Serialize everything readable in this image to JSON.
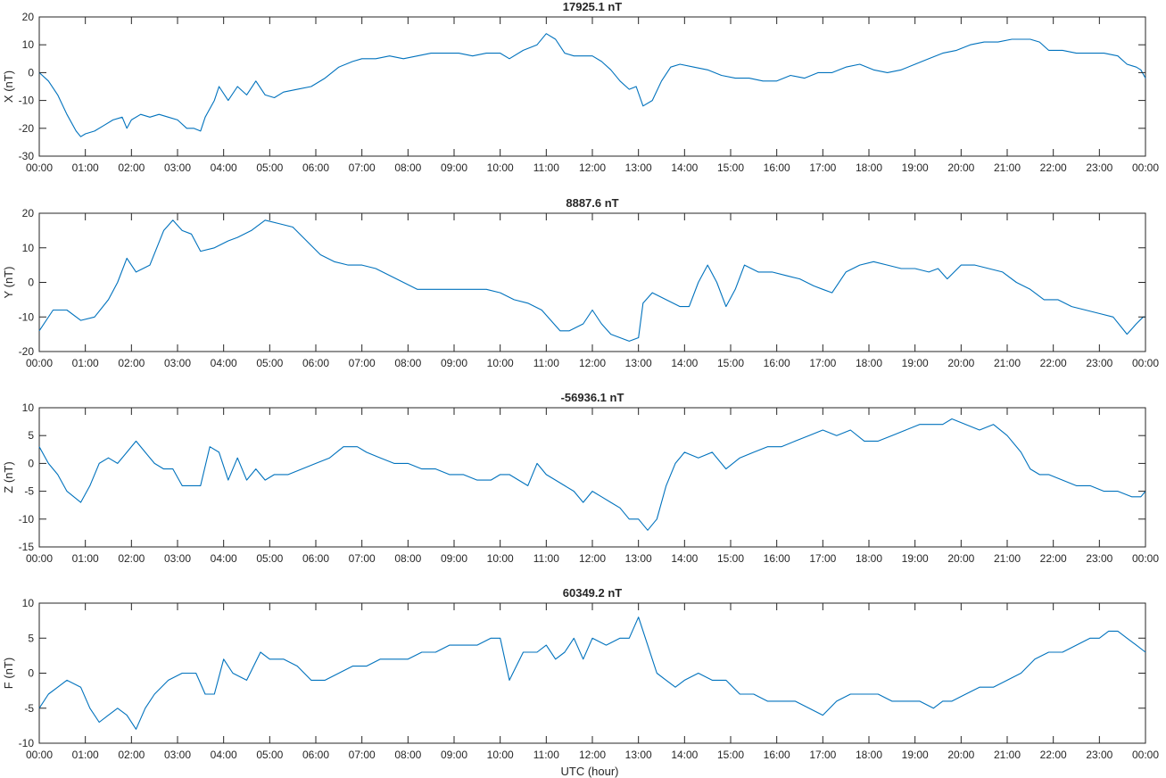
{
  "figure": {
    "xlabel": "UTC (hour)"
  },
  "x_tick_labels": [
    "00:00",
    "01:00",
    "02:00",
    "03:00",
    "04:00",
    "05:00",
    "06:00",
    "07:00",
    "08:00",
    "09:00",
    "10:00",
    "11:00",
    "12:00",
    "13:00",
    "14:00",
    "15:00",
    "16:00",
    "17:00",
    "18:00",
    "19:00",
    "20:00",
    "21:00",
    "22:00",
    "23:00",
    "00:00"
  ],
  "colors": {
    "line": "#0072bd",
    "axis": "#262626",
    "background": "#ffffff"
  },
  "chart_data": [
    {
      "type": "line",
      "title": "17925.1 nT",
      "ylabel": "X (nT)",
      "xlabel": "",
      "xlim": [
        0,
        24
      ],
      "ylim": [
        -30,
        20
      ],
      "yticks": [
        20,
        10,
        0,
        -10,
        -20,
        -30
      ],
      "grid": false,
      "series": [
        {
          "x": [
            0,
            0.2,
            0.4,
            0.6,
            0.8,
            0.9,
            1.0,
            1.2,
            1.4,
            1.6,
            1.8,
            1.9,
            2.0,
            2.2,
            2.4,
            2.6,
            2.8,
            3.0,
            3.2,
            3.35,
            3.5,
            3.6,
            3.8,
            3.9,
            4.1,
            4.3,
            4.5,
            4.7,
            4.9,
            5.1,
            5.3,
            5.6,
            5.9,
            6.2,
            6.5,
            6.8,
            7.0,
            7.3,
            7.6,
            7.9,
            8.2,
            8.5,
            8.8,
            9.1,
            9.4,
            9.7,
            10.0,
            10.2,
            10.5,
            10.8,
            11.0,
            11.2,
            11.4,
            11.6,
            11.8,
            12.0,
            12.2,
            12.4,
            12.6,
            12.8,
            12.95,
            13.1,
            13.3,
            13.5,
            13.7,
            13.9,
            14.2,
            14.5,
            14.8,
            15.1,
            15.4,
            15.7,
            16.0,
            16.3,
            16.6,
            16.9,
            17.2,
            17.5,
            17.8,
            18.1,
            18.4,
            18.7,
            19.0,
            19.3,
            19.6,
            19.9,
            20.2,
            20.5,
            20.8,
            21.1,
            21.35,
            21.5,
            21.7,
            21.9,
            22.2,
            22.5,
            22.8,
            23.1,
            23.4,
            23.6,
            23.8,
            23.9,
            24.0
          ],
          "values": [
            0,
            -3,
            -8,
            -15,
            -21,
            -23,
            -22,
            -21,
            -19,
            -17,
            -16,
            -20,
            -17,
            -15,
            -16,
            -15,
            -16,
            -17,
            -20,
            -20,
            -21,
            -16,
            -10,
            -5,
            -10,
            -5,
            -8,
            -3,
            -8,
            -9,
            -7,
            -6,
            -5,
            -2,
            2,
            4,
            5,
            5,
            6,
            5,
            6,
            7,
            7,
            7,
            6,
            7,
            7,
            5,
            8,
            10,
            14,
            12,
            7,
            6,
            6,
            6,
            4,
            1,
            -3,
            -6,
            -5,
            -12,
            -10,
            -3,
            2,
            3,
            2,
            1,
            -1,
            -2,
            -2,
            -3,
            -3,
            -1,
            -2,
            0,
            0,
            2,
            3,
            1,
            0,
            1,
            3,
            5,
            7,
            8,
            10,
            11,
            11,
            12,
            12,
            12,
            11,
            8,
            8,
            7,
            7,
            7,
            6,
            3,
            2,
            1,
            -2
          ]
        }
      ]
    },
    {
      "type": "line",
      "title": "8887.6 nT",
      "ylabel": "Y (nT)",
      "xlabel": "",
      "xlim": [
        0,
        24
      ],
      "ylim": [
        -20,
        20
      ],
      "yticks": [
        20,
        10,
        0,
        -10,
        -20
      ],
      "grid": false,
      "series": [
        {
          "x": [
            0,
            0.3,
            0.6,
            0.9,
            1.2,
            1.5,
            1.7,
            1.9,
            2.1,
            2.4,
            2.7,
            2.9,
            3.1,
            3.3,
            3.5,
            3.8,
            4.1,
            4.3,
            4.6,
            4.9,
            5.2,
            5.5,
            5.8,
            6.1,
            6.4,
            6.7,
            7.0,
            7.3,
            7.6,
            7.9,
            8.2,
            8.5,
            8.8,
            9.1,
            9.4,
            9.7,
            10.0,
            10.3,
            10.6,
            10.9,
            11.1,
            11.3,
            11.5,
            11.8,
            12.0,
            12.2,
            12.4,
            12.6,
            12.8,
            13.0,
            13.1,
            13.3,
            13.6,
            13.9,
            14.1,
            14.3,
            14.5,
            14.7,
            14.9,
            15.1,
            15.3,
            15.6,
            15.9,
            16.2,
            16.5,
            16.8,
            17.0,
            17.2,
            17.5,
            17.8,
            18.1,
            18.4,
            18.7,
            19.0,
            19.3,
            19.5,
            19.7,
            20.0,
            20.3,
            20.6,
            20.9,
            21.2,
            21.5,
            21.8,
            22.1,
            22.4,
            22.7,
            23.0,
            23.3,
            23.6,
            23.8,
            23.95,
            24.0
          ],
          "values": [
            -14,
            -8,
            -8,
            -11,
            -10,
            -5,
            0,
            7,
            3,
            5,
            15,
            18,
            15,
            14,
            9,
            10,
            12,
            13,
            15,
            18,
            17,
            16,
            12,
            8,
            6,
            5,
            5,
            4,
            2,
            0,
            -2,
            -2,
            -2,
            -2,
            -2,
            -2,
            -3,
            -5,
            -6,
            -8,
            -11,
            -14,
            -14,
            -12,
            -8,
            -12,
            -15,
            -16,
            -17,
            -16,
            -6,
            -3,
            -5,
            -7,
            -7,
            0,
            5,
            0,
            -7,
            -2,
            5,
            3,
            3,
            2,
            1,
            -1,
            -2,
            -3,
            3,
            5,
            6,
            5,
            4,
            4,
            3,
            4,
            1,
            5,
            5,
            4,
            3,
            0,
            -2,
            -5,
            -5,
            -7,
            -8,
            -9,
            -10,
            -15,
            -12,
            -10,
            -10
          ]
        }
      ]
    },
    {
      "type": "line",
      "title": "-56936.1 nT",
      "ylabel": "Z (nT)",
      "xlabel": "",
      "xlim": [
        0,
        24
      ],
      "ylim": [
        -15,
        10
      ],
      "yticks": [
        10,
        5,
        0,
        -5,
        -10,
        -15
      ],
      "grid": false,
      "series": [
        {
          "x": [
            0,
            0.2,
            0.4,
            0.6,
            0.9,
            1.1,
            1.3,
            1.5,
            1.7,
            1.9,
            2.1,
            2.3,
            2.5,
            2.7,
            2.9,
            3.1,
            3.3,
            3.5,
            3.7,
            3.9,
            4.1,
            4.3,
            4.5,
            4.7,
            4.9,
            5.1,
            5.4,
            5.7,
            6.0,
            6.3,
            6.6,
            6.9,
            7.1,
            7.4,
            7.7,
            8.0,
            8.3,
            8.6,
            8.9,
            9.2,
            9.5,
            9.8,
            10.0,
            10.2,
            10.4,
            10.6,
            10.8,
            11.0,
            11.2,
            11.4,
            11.6,
            11.8,
            12.0,
            12.2,
            12.4,
            12.6,
            12.8,
            13.0,
            13.2,
            13.4,
            13.6,
            13.8,
            14.0,
            14.3,
            14.6,
            14.9,
            15.2,
            15.5,
            15.8,
            16.1,
            16.4,
            16.7,
            17.0,
            17.3,
            17.6,
            17.9,
            18.2,
            18.5,
            18.8,
            19.1,
            19.4,
            19.6,
            19.8,
            20.1,
            20.4,
            20.7,
            21.0,
            21.3,
            21.5,
            21.7,
            21.9,
            22.2,
            22.5,
            22.8,
            23.1,
            23.4,
            23.7,
            23.9,
            24.0
          ],
          "values": [
            3,
            0,
            -2,
            -5,
            -7,
            -4,
            0,
            1,
            0,
            2,
            4,
            2,
            0,
            -1,
            -1,
            -4,
            -4,
            -4,
            3,
            2,
            -3,
            1,
            -3,
            -1,
            -3,
            -2,
            -2,
            -1,
            0,
            1,
            3,
            3,
            2,
            1,
            0,
            0,
            -1,
            -1,
            -2,
            -2,
            -3,
            -3,
            -2,
            -2,
            -3,
            -4,
            0,
            -2,
            -3,
            -4,
            -5,
            -7,
            -5,
            -6,
            -7,
            -8,
            -10,
            -10,
            -12,
            -10,
            -4,
            0,
            2,
            1,
            2,
            -1,
            1,
            2,
            3,
            3,
            4,
            5,
            6,
            5,
            6,
            4,
            4,
            5,
            6,
            7,
            7,
            7,
            8,
            7,
            6,
            7,
            5,
            2,
            -1,
            -2,
            -2,
            -3,
            -4,
            -4,
            -5,
            -5,
            -6,
            -6,
            -5
          ]
        }
      ]
    },
    {
      "type": "line",
      "title": "60349.2 nT",
      "ylabel": "F (nT)",
      "xlabel": "UTC (hour)",
      "xlim": [
        0,
        24
      ],
      "ylim": [
        -10,
        10
      ],
      "yticks": [
        10,
        5,
        0,
        -5,
        -10
      ],
      "grid": false,
      "series": [
        {
          "x": [
            0,
            0.2,
            0.4,
            0.6,
            0.9,
            1.1,
            1.3,
            1.5,
            1.7,
            1.9,
            2.1,
            2.3,
            2.5,
            2.8,
            3.1,
            3.4,
            3.6,
            3.8,
            4.0,
            4.2,
            4.5,
            4.8,
            5.0,
            5.3,
            5.6,
            5.9,
            6.2,
            6.5,
            6.8,
            7.1,
            7.4,
            7.7,
            8.0,
            8.3,
            8.6,
            8.9,
            9.2,
            9.5,
            9.8,
            10.0,
            10.2,
            10.5,
            10.8,
            11.0,
            11.2,
            11.4,
            11.6,
            11.8,
            12.0,
            12.3,
            12.6,
            12.8,
            13.0,
            13.2,
            13.4,
            13.6,
            13.8,
            14.0,
            14.3,
            14.6,
            14.9,
            15.2,
            15.5,
            15.8,
            16.1,
            16.4,
            16.7,
            17.0,
            17.3,
            17.6,
            17.9,
            18.2,
            18.5,
            18.8,
            19.1,
            19.4,
            19.6,
            19.8,
            20.1,
            20.4,
            20.7,
            21.0,
            21.3,
            21.6,
            21.9,
            22.2,
            22.5,
            22.8,
            23.0,
            23.2,
            23.4,
            23.6,
            23.8,
            24.0
          ],
          "values": [
            -5,
            -3,
            -2,
            -1,
            -2,
            -5,
            -7,
            -6,
            -5,
            -6,
            -8,
            -5,
            -3,
            -1,
            0,
            0,
            -3,
            -3,
            2,
            0,
            -1,
            3,
            2,
            2,
            1,
            -1,
            -1,
            0,
            1,
            1,
            2,
            2,
            2,
            3,
            3,
            4,
            4,
            4,
            5,
            5,
            -1,
            3,
            3,
            4,
            2,
            3,
            5,
            2,
            5,
            4,
            5,
            5,
            8,
            4,
            0,
            -1,
            -2,
            -1,
            0,
            -1,
            -1,
            -3,
            -3,
            -4,
            -4,
            -4,
            -5,
            -6,
            -4,
            -3,
            -3,
            -3,
            -4,
            -4,
            -4,
            -5,
            -4,
            -4,
            -3,
            -2,
            -2,
            -1,
            0,
            2,
            3,
            3,
            4,
            5,
            5,
            6,
            6,
            5,
            4,
            3
          ]
        }
      ]
    }
  ]
}
